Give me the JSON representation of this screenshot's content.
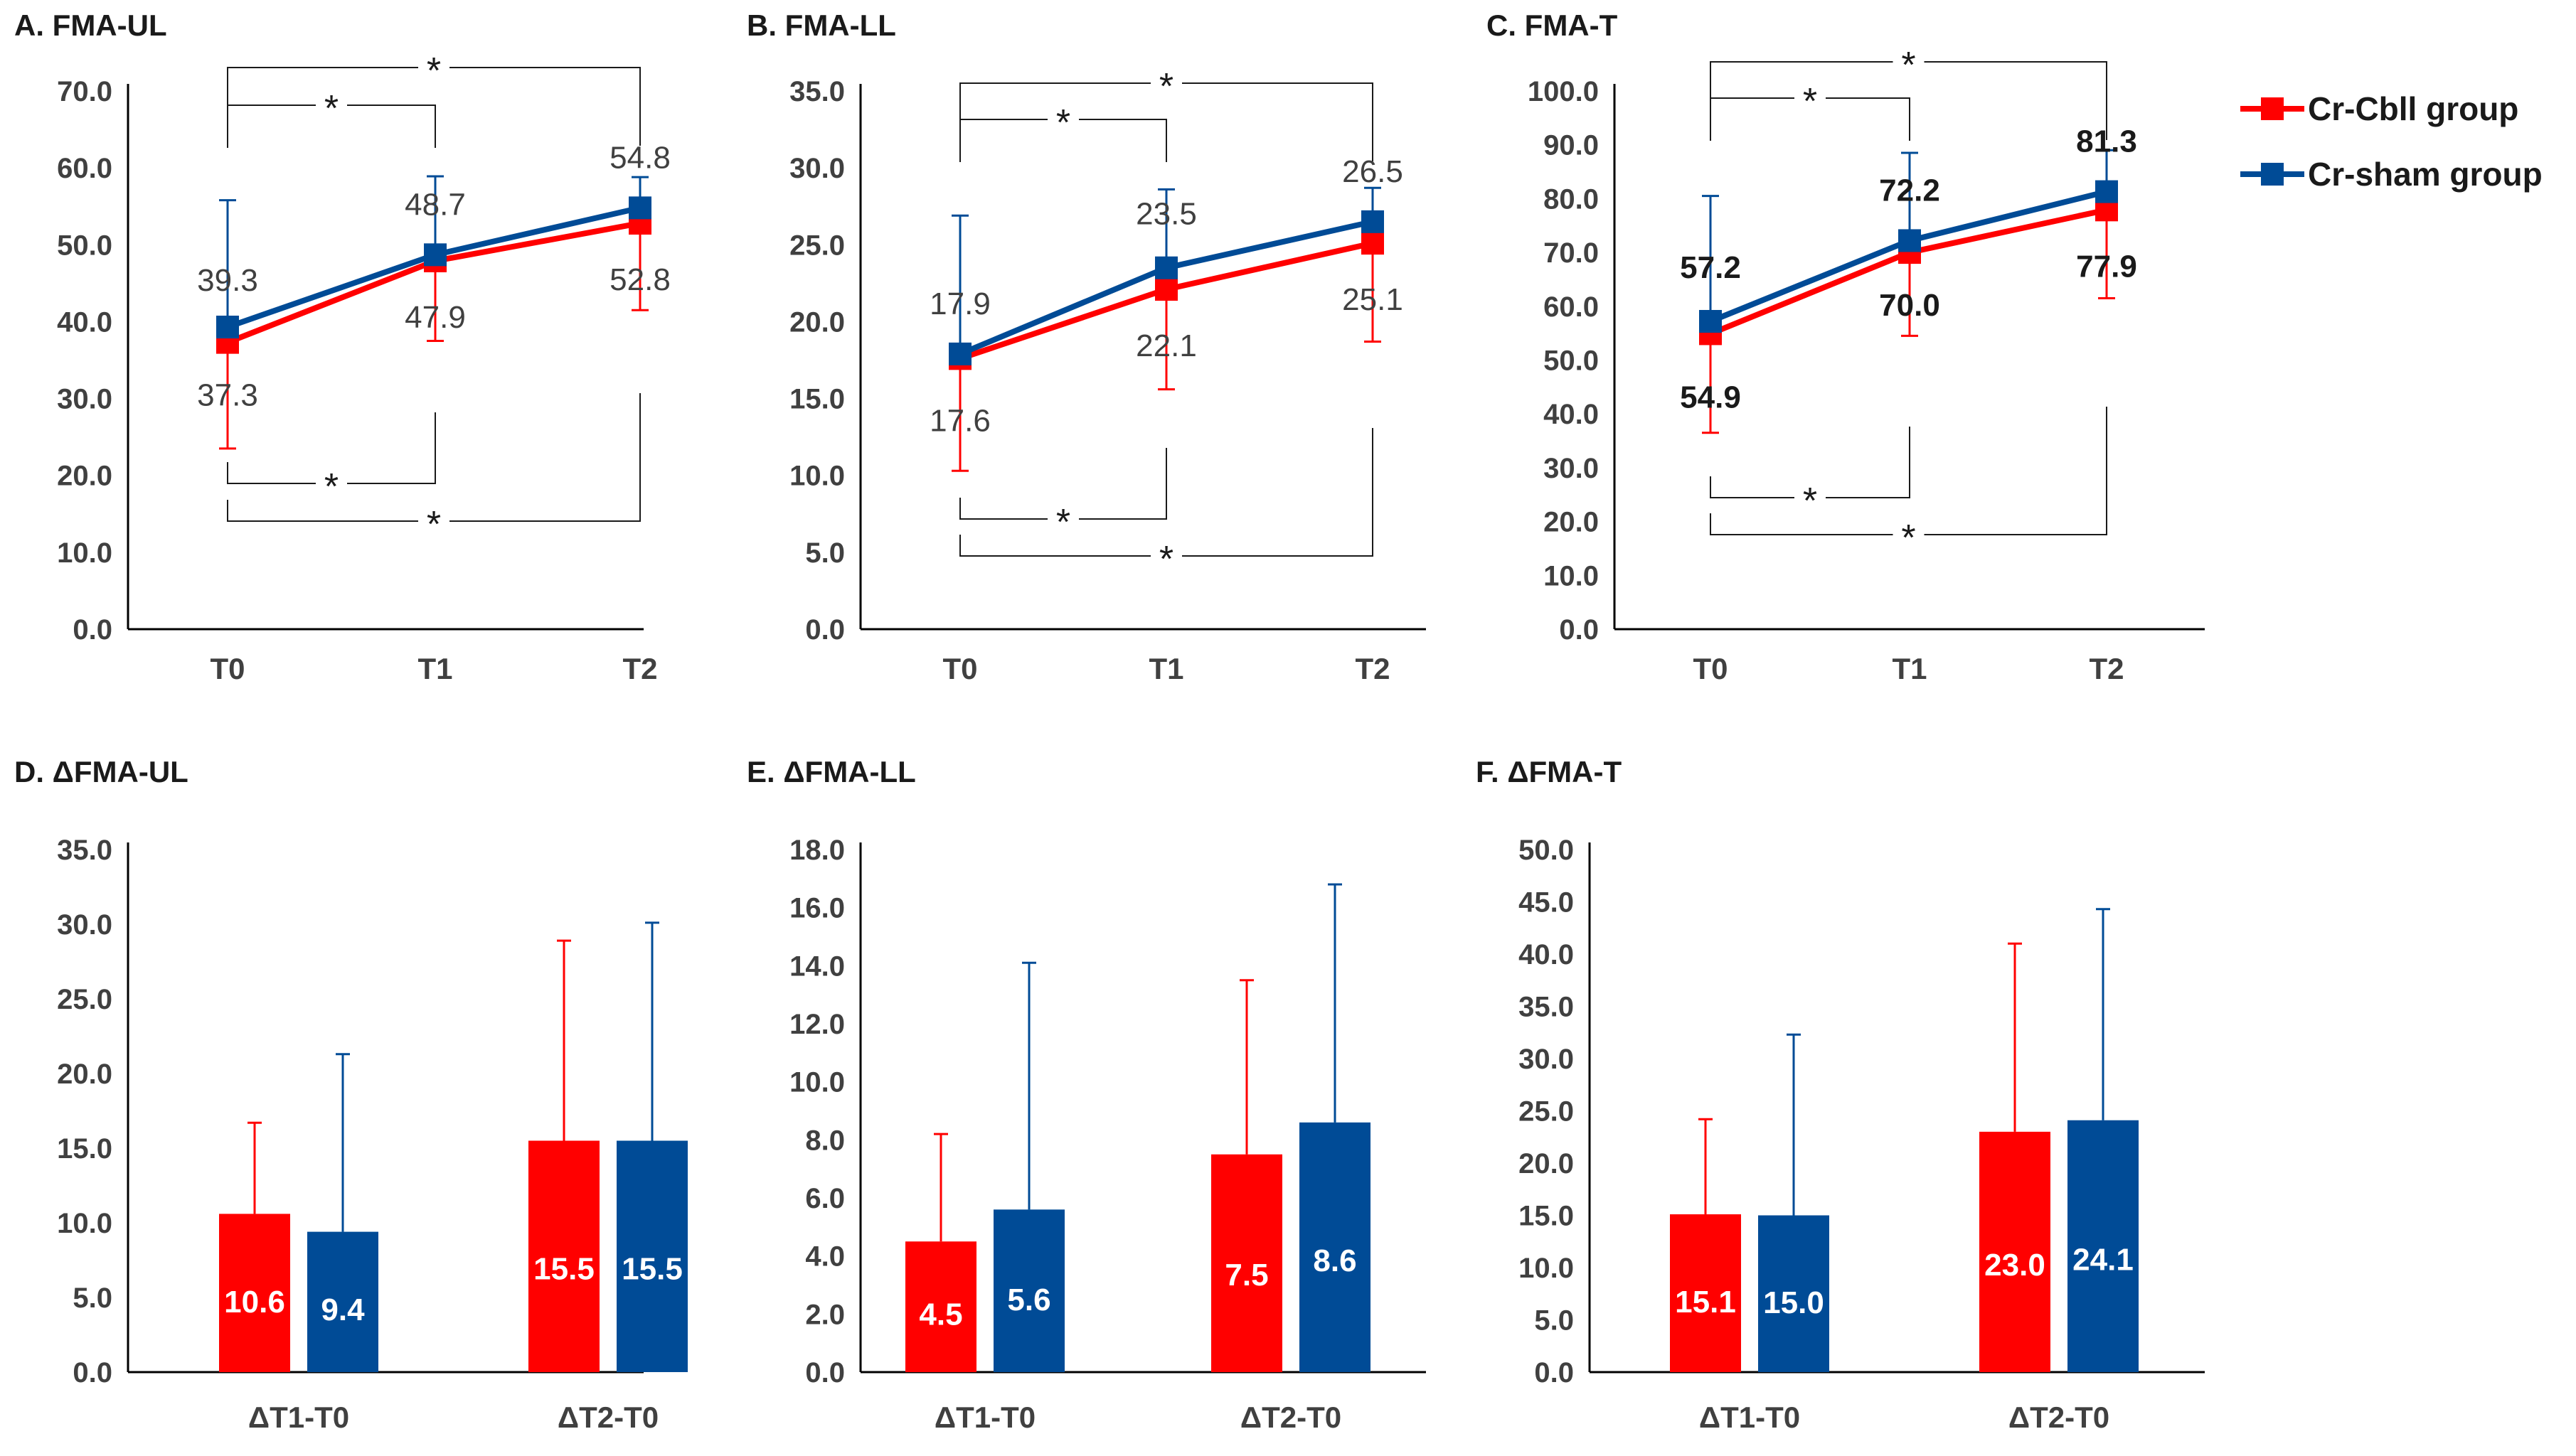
{
  "legend": {
    "series": [
      {
        "name": "Cr-Cbll group",
        "color": "#ff0000"
      },
      {
        "name": "Cr-sham group",
        "color": "#004b96"
      }
    ]
  },
  "chart_data": [
    {
      "id": "A",
      "type": "line",
      "title": "A. FMA-UL",
      "categories": [
        "T0",
        "T1",
        "T2"
      ],
      "yticks": [
        "0.0",
        "10.0",
        "20.0",
        "30.0",
        "40.0",
        "50.0",
        "60.0",
        "70.0"
      ],
      "ylim": [
        0,
        70
      ],
      "series": [
        {
          "name": "Cr-Cbll group",
          "values": [
            37.3,
            47.9,
            52.8
          ],
          "labels": [
            "37.3",
            "47.9",
            "52.8"
          ],
          "err_lo": [
            23.5,
            37.5,
            41.5
          ],
          "err_hi": [
            37.3,
            47.9,
            52.8
          ]
        },
        {
          "name": "Cr-sham group",
          "values": [
            39.3,
            48.7,
            54.8
          ],
          "labels": [
            "39.3",
            "48.7",
            "54.8"
          ],
          "err_lo": [
            39.3,
            48.7,
            54.8
          ],
          "err_hi": [
            55.8,
            58.9,
            58.8
          ]
        }
      ],
      "significance": [
        {
          "from": "T0",
          "to": "T1",
          "position": "top",
          "label": "*"
        },
        {
          "from": "T0",
          "to": "T2",
          "position": "top",
          "label": "*"
        },
        {
          "from": "T0",
          "to": "T1",
          "position": "bottom",
          "label": "*"
        },
        {
          "from": "T0",
          "to": "T2",
          "position": "bottom",
          "label": "*"
        }
      ]
    },
    {
      "id": "B",
      "type": "line",
      "title": "B. FMA-LL",
      "categories": [
        "T0",
        "T1",
        "T2"
      ],
      "yticks": [
        "0.0",
        "5.0",
        "10.0",
        "15.0",
        "20.0",
        "25.0",
        "30.0",
        "35.0"
      ],
      "ylim": [
        0,
        35
      ],
      "series": [
        {
          "name": "Cr-Cbll group",
          "values": [
            17.6,
            22.1,
            25.1
          ],
          "labels": [
            "17.6",
            "22.1",
            "25.1"
          ],
          "err_lo": [
            10.3,
            15.6,
            18.7
          ],
          "err_hi": [
            17.6,
            22.1,
            25.1
          ]
        },
        {
          "name": "Cr-sham group",
          "values": [
            17.9,
            23.5,
            26.5
          ],
          "labels": [
            "17.9",
            "23.5",
            "26.5"
          ],
          "err_lo": [
            17.9,
            23.5,
            26.5
          ],
          "err_hi": [
            26.9,
            28.6,
            28.7
          ]
        }
      ],
      "significance": [
        {
          "from": "T0",
          "to": "T1",
          "position": "top",
          "label": "*"
        },
        {
          "from": "T0",
          "to": "T2",
          "position": "top",
          "label": "*"
        },
        {
          "from": "T0",
          "to": "T1",
          "position": "bottom",
          "label": "*"
        },
        {
          "from": "T0",
          "to": "T2",
          "position": "bottom",
          "label": "*"
        }
      ]
    },
    {
      "id": "C",
      "type": "line",
      "title": "C. FMA-T",
      "categories": [
        "T0",
        "T1",
        "T2"
      ],
      "yticks": [
        "0.0",
        "10.0",
        "20.0",
        "30.0",
        "40.0",
        "50.0",
        "60.0",
        "70.0",
        "80.0",
        "90.0",
        "100.0"
      ],
      "ylim": [
        0,
        100
      ],
      "series": [
        {
          "name": "Cr-Cbll group",
          "values": [
            54.9,
            70.0,
            77.9
          ],
          "labels": [
            "54.9",
            "70.0",
            "77.9"
          ],
          "err_lo": [
            36.5,
            54.5,
            61.5
          ],
          "err_hi": [
            54.9,
            70.0,
            77.9
          ]
        },
        {
          "name": "Cr-sham group",
          "values": [
            57.2,
            72.2,
            81.3
          ],
          "labels": [
            "57.2",
            "72.2",
            "81.3"
          ],
          "err_lo": [
            57.2,
            72.2,
            81.3
          ],
          "err_hi": [
            80.5,
            88.5,
            89.0
          ]
        }
      ],
      "significance": [
        {
          "from": "T0",
          "to": "T1",
          "position": "top",
          "label": "*"
        },
        {
          "from": "T0",
          "to": "T2",
          "position": "top",
          "label": "*"
        },
        {
          "from": "T0",
          "to": "T1",
          "position": "bottom",
          "label": "*"
        },
        {
          "from": "T0",
          "to": "T2",
          "position": "bottom",
          "label": "*"
        }
      ]
    },
    {
      "id": "D",
      "type": "bar",
      "title": "D. ΔFMA-UL",
      "categories": [
        "ΔT1-T0",
        "ΔT2-T0"
      ],
      "yticks": [
        "0.0",
        "5.0",
        "10.0",
        "15.0",
        "20.0",
        "25.0",
        "30.0",
        "35.0"
      ],
      "ylim": [
        0,
        35
      ],
      "series": [
        {
          "name": "Cr-Cbll group",
          "values": [
            10.6,
            15.5
          ],
          "labels": [
            "10.6",
            "15.5"
          ],
          "err_hi": [
            16.7,
            28.9
          ]
        },
        {
          "name": "Cr-sham group",
          "values": [
            9.4,
            15.5
          ],
          "labels": [
            "9.4",
            "15.5"
          ],
          "err_hi": [
            21.3,
            30.1
          ]
        }
      ]
    },
    {
      "id": "E",
      "type": "bar",
      "title": "E. ΔFMA-LL",
      "categories": [
        "ΔT1-T0",
        "ΔT2-T0"
      ],
      "yticks": [
        "0.0",
        "2.0",
        "4.0",
        "6.0",
        "8.0",
        "10.0",
        "12.0",
        "14.0",
        "16.0",
        "18.0"
      ],
      "ylim": [
        0,
        18
      ],
      "series": [
        {
          "name": "Cr-Cbll group",
          "values": [
            4.5,
            7.5
          ],
          "labels": [
            "4.5",
            "7.5"
          ],
          "err_hi": [
            8.2,
            13.5
          ]
        },
        {
          "name": "Cr-sham group",
          "values": [
            5.6,
            8.6
          ],
          "labels": [
            "5.6",
            "8.6"
          ],
          "err_hi": [
            14.1,
            16.8
          ]
        }
      ]
    },
    {
      "id": "F",
      "type": "bar",
      "title": "F. ΔFMA-T",
      "categories": [
        "ΔT1-T0",
        "ΔT2-T0"
      ],
      "yticks": [
        "0.0",
        "5.0",
        "10.0",
        "15.0",
        "20.0",
        "25.0",
        "30.0",
        "35.0",
        "40.0",
        "45.0",
        "50.0"
      ],
      "ylim": [
        0,
        50
      ],
      "series": [
        {
          "name": "Cr-Cbll group",
          "values": [
            15.1,
            23.0
          ],
          "labels": [
            "15.1",
            "23.0"
          ],
          "err_hi": [
            24.2,
            41.0
          ]
        },
        {
          "name": "Cr-sham group",
          "values": [
            15.0,
            24.1
          ],
          "labels": [
            "15.0",
            "24.1"
          ],
          "err_hi": [
            32.3,
            44.3
          ]
        }
      ]
    }
  ]
}
